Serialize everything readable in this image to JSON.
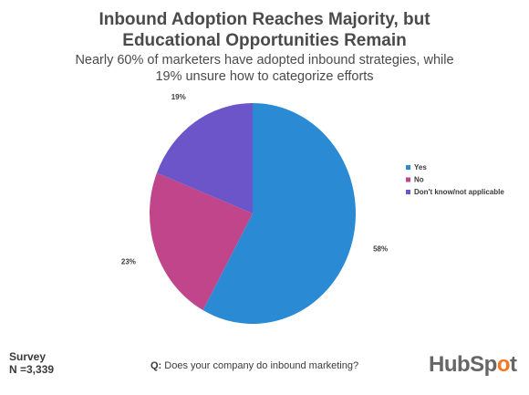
{
  "header": {
    "title_line1": "Inbound Adoption Reaches Majority, but",
    "title_line2": "Educational Opportunities Remain",
    "subtitle_line1": "Nearly 60% of marketers have adopted inbound strategies, while",
    "subtitle_line2": "19% unsure how to categorize efforts"
  },
  "chart_data": {
    "type": "pie",
    "title": "Inbound Adoption Reaches Majority, but Educational Opportunities Remain",
    "subtitle": "Nearly 60% of marketers have adopted inbound strategies, while 19% unsure how to categorize efforts",
    "slices": [
      {
        "label": "Yes",
        "value": 58,
        "value_label": "58%",
        "color": "#2a8bd4"
      },
      {
        "label": "No",
        "value": 23,
        "value_label": "23%",
        "color": "#c0458a"
      },
      {
        "label": "Don't know/not applicable",
        "value": 19,
        "value_label": "19%",
        "color": "#6b55c9"
      }
    ],
    "legend_position": "right"
  },
  "footer": {
    "survey_label": "Survey",
    "sample_size": "N =3,339",
    "question_prefix": "Q:",
    "question_text": "Does your company do inbound marketing?",
    "logo_text_left": "HubSp",
    "logo_text_o": "o",
    "logo_text_right": "t"
  }
}
